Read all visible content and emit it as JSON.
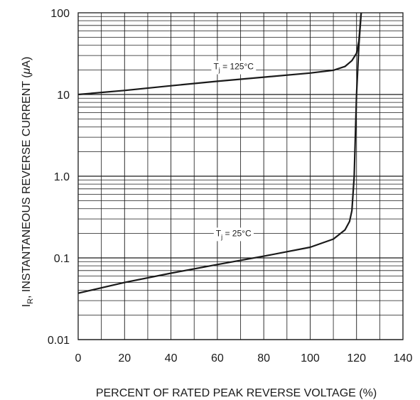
{
  "chart_data": {
    "type": "line",
    "title": "",
    "xlabel": "PERCENT OF RATED PEAK REVERSE VOLTAGE (%)",
    "ylabel_main": "I",
    "ylabel_sub": "R",
    "ylabel_rest": ", INSTANTANEOUS REVERSE CURRENT (",
    "ylabel_mu": "μ",
    "ylabel_end": "A)",
    "xlim": [
      0,
      140
    ],
    "ylim": [
      0.01,
      100
    ],
    "yscale": "log",
    "grid": true,
    "x_ticks": [
      "0",
      "20",
      "40",
      "60",
      "80",
      "100",
      "120",
      "140"
    ],
    "y_ticks": [
      "0.01",
      "0.1",
      "1.0",
      "10",
      "100"
    ],
    "series": [
      {
        "label_main": "T",
        "label_sub": "j",
        "label_rest": " = 125°C",
        "label_x": 67,
        "label_y": 22,
        "points": [
          [
            0,
            10
          ],
          [
            20,
            11.2
          ],
          [
            40,
            12.8
          ],
          [
            60,
            14.5
          ],
          [
            80,
            16.3
          ],
          [
            100,
            18.3
          ],
          [
            110,
            19.8
          ],
          [
            115,
            22
          ],
          [
            118,
            26
          ],
          [
            120,
            32
          ],
          [
            121,
            45
          ],
          [
            122,
            100
          ]
        ]
      },
      {
        "label_main": "T",
        "label_sub": "j",
        "label_rest": " = 25°C",
        "label_x": 67,
        "label_y": 0.2,
        "points": [
          [
            0,
            0.037
          ],
          [
            20,
            0.05
          ],
          [
            40,
            0.065
          ],
          [
            60,
            0.083
          ],
          [
            80,
            0.105
          ],
          [
            100,
            0.135
          ],
          [
            110,
            0.17
          ],
          [
            115,
            0.22
          ],
          [
            117,
            0.28
          ],
          [
            118,
            0.38
          ],
          [
            119,
            1.0
          ],
          [
            120,
            10
          ],
          [
            121,
            40
          ],
          [
            122,
            100
          ]
        ]
      }
    ]
  }
}
